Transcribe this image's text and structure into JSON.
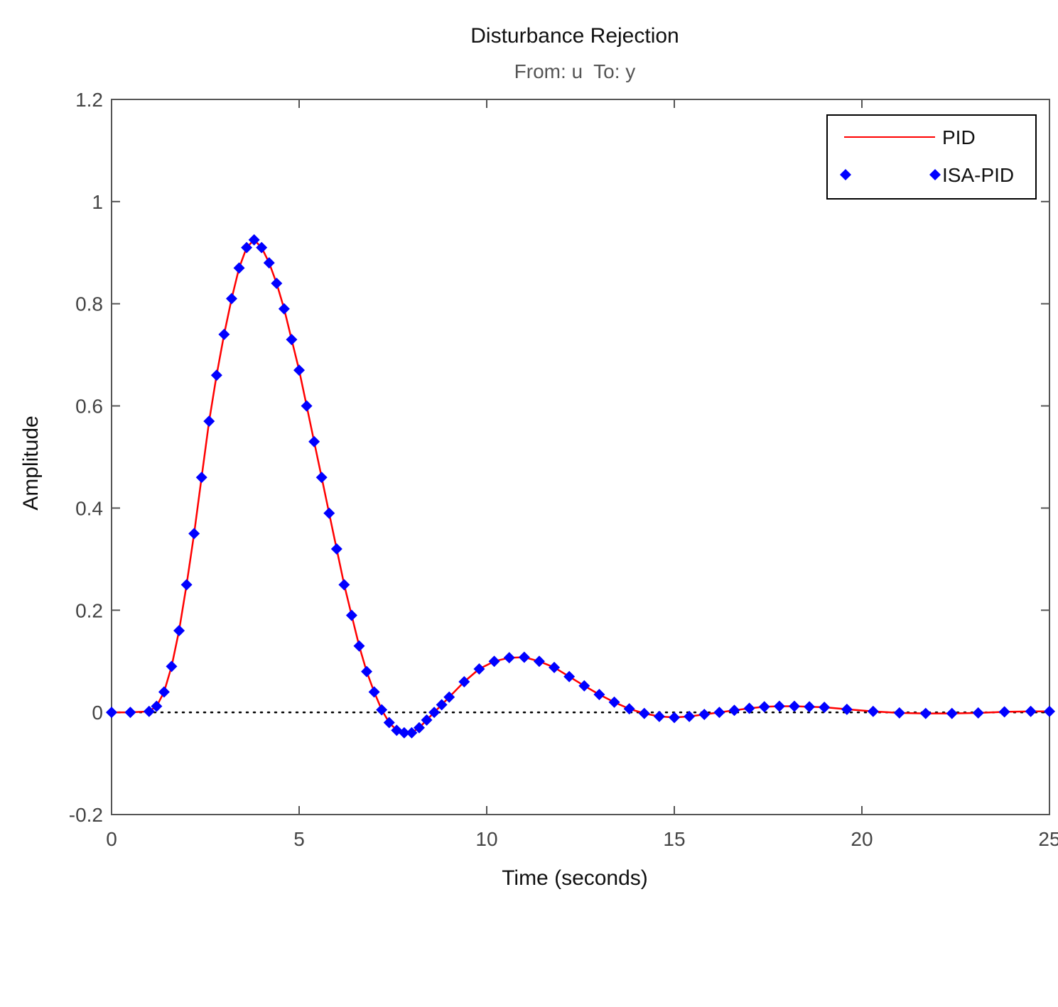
{
  "chart_data": {
    "type": "line",
    "title": "Disturbance Rejection",
    "subtitle": "From: u  To: y",
    "xlabel": "Time (seconds)",
    "ylabel": "Amplitude",
    "xlim": [
      0,
      25
    ],
    "ylim": [
      -0.2,
      1.2
    ],
    "xticks": [
      "0",
      "5",
      "10",
      "15",
      "20",
      "25"
    ],
    "yticks": [
      "-0.2",
      "0",
      "0.2",
      "0.4",
      "0.6",
      "0.8",
      "1",
      "1.2"
    ],
    "grid": false,
    "legend_position": "top-right",
    "reference_line": {
      "y": 0,
      "style": "dotted"
    },
    "colors": {
      "PID": "#ff0000",
      "ISA-PID": "#0000ff",
      "axes": "#555555"
    },
    "series": [
      {
        "name": "PID",
        "style": "line",
        "x": [
          0,
          0.5,
          1.0,
          1.2,
          1.4,
          1.6,
          1.8,
          2.0,
          2.2,
          2.4,
          2.6,
          2.8,
          3.0,
          3.2,
          3.4,
          3.6,
          3.8,
          4.0,
          4.2,
          4.4,
          4.6,
          4.8,
          5.0,
          5.2,
          5.4,
          5.6,
          5.8,
          6.0,
          6.2,
          6.4,
          6.6,
          6.8,
          7.0,
          7.2,
          7.4,
          7.6,
          7.8,
          8.0,
          8.2,
          8.4,
          8.6,
          8.8,
          9.0,
          9.4,
          9.8,
          10.2,
          10.6,
          11.0,
          11.4,
          11.8,
          12.2,
          12.6,
          13.0,
          13.4,
          13.8,
          14.2,
          14.6,
          15.0,
          15.4,
          15.8,
          16.2,
          16.6,
          17.0,
          17.4,
          17.8,
          18.2,
          18.6,
          19.0,
          19.6,
          20.3,
          21.0,
          21.7,
          22.4,
          23.1,
          23.8,
          24.5,
          25.0
        ],
        "y": [
          0,
          0,
          0.002,
          0.012,
          0.04,
          0.09,
          0.16,
          0.25,
          0.35,
          0.46,
          0.57,
          0.66,
          0.74,
          0.81,
          0.87,
          0.91,
          0.925,
          0.91,
          0.88,
          0.84,
          0.79,
          0.73,
          0.67,
          0.6,
          0.53,
          0.46,
          0.39,
          0.32,
          0.25,
          0.19,
          0.13,
          0.08,
          0.04,
          0.005,
          -0.02,
          -0.035,
          -0.04,
          -0.04,
          -0.03,
          -0.015,
          0.0,
          0.015,
          0.03,
          0.06,
          0.085,
          0.1,
          0.107,
          0.108,
          0.1,
          0.088,
          0.07,
          0.052,
          0.035,
          0.02,
          0.007,
          -0.002,
          -0.008,
          -0.01,
          -0.008,
          -0.004,
          0.0,
          0.004,
          0.008,
          0.011,
          0.012,
          0.012,
          0.011,
          0.01,
          0.006,
          0.002,
          -0.001,
          -0.002,
          -0.002,
          -0.001,
          0.001,
          0.002,
          0.002
        ]
      },
      {
        "name": "ISA-PID",
        "style": "markers",
        "marker": "diamond",
        "x": [
          0,
          0.5,
          1.0,
          1.2,
          1.4,
          1.6,
          1.8,
          2.0,
          2.2,
          2.4,
          2.6,
          2.8,
          3.0,
          3.2,
          3.4,
          3.6,
          3.8,
          4.0,
          4.2,
          4.4,
          4.6,
          4.8,
          5.0,
          5.2,
          5.4,
          5.6,
          5.8,
          6.0,
          6.2,
          6.4,
          6.6,
          6.8,
          7.0,
          7.2,
          7.4,
          7.6,
          7.8,
          8.0,
          8.2,
          8.4,
          8.6,
          8.8,
          9.0,
          9.4,
          9.8,
          10.2,
          10.6,
          11.0,
          11.4,
          11.8,
          12.2,
          12.6,
          13.0,
          13.4,
          13.8,
          14.2,
          14.6,
          15.0,
          15.4,
          15.8,
          16.2,
          16.6,
          17.0,
          17.4,
          17.8,
          18.2,
          18.6,
          19.0,
          19.6,
          20.3,
          21.0,
          21.7,
          22.4,
          23.1,
          23.8,
          24.5,
          25.0
        ],
        "y": [
          0,
          0,
          0.002,
          0.012,
          0.04,
          0.09,
          0.16,
          0.25,
          0.35,
          0.46,
          0.57,
          0.66,
          0.74,
          0.81,
          0.87,
          0.91,
          0.925,
          0.91,
          0.88,
          0.84,
          0.79,
          0.73,
          0.67,
          0.6,
          0.53,
          0.46,
          0.39,
          0.32,
          0.25,
          0.19,
          0.13,
          0.08,
          0.04,
          0.005,
          -0.02,
          -0.035,
          -0.04,
          -0.04,
          -0.03,
          -0.015,
          0.0,
          0.015,
          0.03,
          0.06,
          0.085,
          0.1,
          0.107,
          0.108,
          0.1,
          0.088,
          0.07,
          0.052,
          0.035,
          0.02,
          0.007,
          -0.002,
          -0.008,
          -0.01,
          -0.008,
          -0.004,
          0.0,
          0.004,
          0.008,
          0.011,
          0.012,
          0.012,
          0.011,
          0.01,
          0.006,
          0.002,
          -0.001,
          -0.002,
          -0.002,
          -0.001,
          0.001,
          0.002,
          0.002
        ]
      }
    ]
  }
}
